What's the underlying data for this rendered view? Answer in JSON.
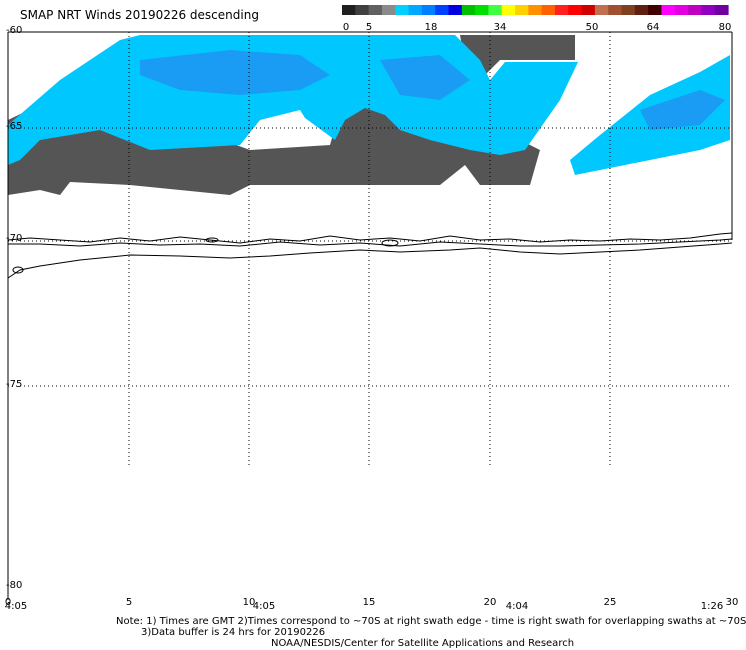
{
  "title": "SMAP NRT Winds  20190226 descending",
  "colorbar": {
    "tick_labels": [
      "0",
      "5",
      "18",
      "34",
      "50",
      "64",
      "80"
    ],
    "segments": [
      "#202020",
      "#404040",
      "#606060",
      "#8a8a8a",
      "#00cfff",
      "#00a8ff",
      "#0080ff",
      "#0040ff",
      "#0000e0",
      "#00c000",
      "#00e000",
      "#40ff40",
      "#ffff00",
      "#ffd000",
      "#ff9000",
      "#ff6000",
      "#ff2020",
      "#ff0000",
      "#d00000",
      "#c07050",
      "#a05030",
      "#804020",
      "#602010",
      "#400000",
      "#ff00ff",
      "#e000e0",
      "#c000c0",
      "#9000c0",
      "#7000a0"
    ]
  },
  "lat_labels": [
    "-60",
    "-65",
    "-70",
    "-75",
    "-80"
  ],
  "lon_labels": [
    "0",
    "5",
    "10",
    "15",
    "20",
    "25",
    "30"
  ],
  "time_labels": [
    "4:05",
    "4:05",
    "4:04",
    "1:26"
  ],
  "notes": {
    "line1": "Note: 1) Times are GMT 2)Times correspond to ~70S at right swath edge - time is right swath for overlapping swaths at ~70S",
    "line2": "3)Data buffer is 24 hrs for 20190226",
    "line3": "NOAA/NESDIS/Center for Satellite Applications and Research"
  }
}
